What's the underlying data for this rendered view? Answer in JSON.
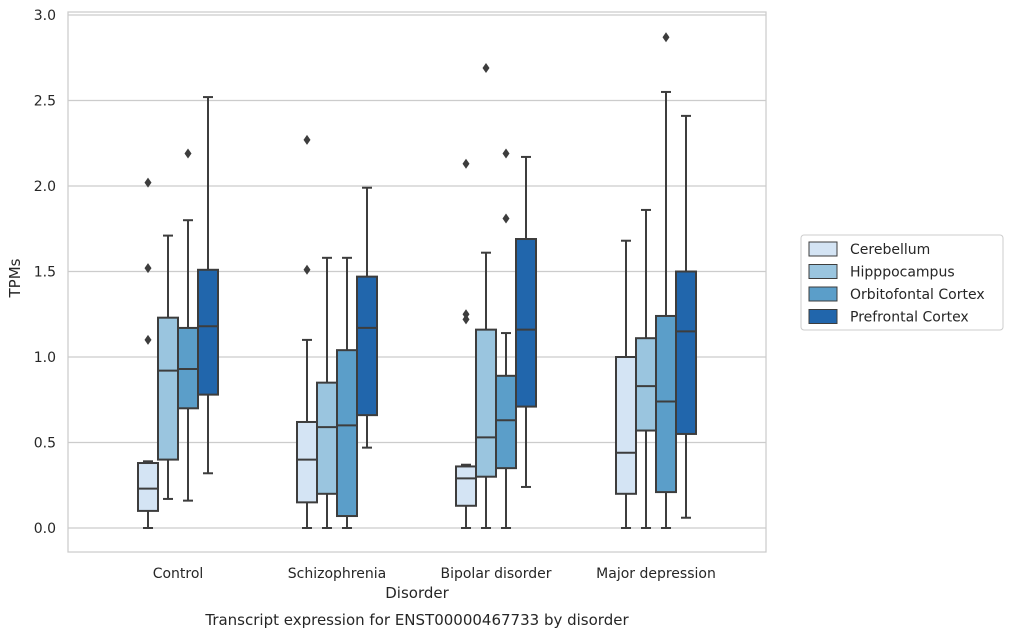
{
  "chart_data": {
    "type": "box",
    "title": "",
    "caption": "Transcript expression for ENST00000467733 by disorder",
    "xlabel": "Disorder",
    "ylabel": "TPMs",
    "ylim": [
      -0.14,
      3.02
    ],
    "yticks": [
      0.0,
      0.5,
      1.0,
      1.5,
      2.0,
      2.5,
      3.0
    ],
    "ytick_labels": [
      "0.0",
      "0.5",
      "1.0",
      "1.5",
      "2.0",
      "2.5",
      "3.0"
    ],
    "grid": "horizontal",
    "legend_position": "right",
    "categories": [
      "Control",
      "Schizophrenia",
      "Bipolar disorder",
      "Major depression"
    ],
    "series": [
      {
        "name": "Cerebellum",
        "color": "#d4e4f4",
        "boxes": [
          {
            "whislo": 0.0,
            "q1": 0.1,
            "med": 0.23,
            "q3": 0.38,
            "whishi": 0.39,
            "fliers": [
              2.02,
              1.52,
              1.1
            ]
          },
          {
            "whislo": 0.0,
            "q1": 0.15,
            "med": 0.4,
            "q3": 0.62,
            "whishi": 1.1,
            "fliers": [
              2.27,
              1.51
            ]
          },
          {
            "whislo": 0.0,
            "q1": 0.13,
            "med": 0.29,
            "q3": 0.36,
            "whishi": 0.37,
            "fliers": [
              2.13,
              1.25,
              1.22
            ]
          },
          {
            "whislo": 0.0,
            "q1": 0.2,
            "med": 0.44,
            "q3": 1.0,
            "whishi": 1.68,
            "fliers": []
          }
        ]
      },
      {
        "name": "Hipppocampus",
        "color": "#9ac5df",
        "boxes": [
          {
            "whislo": 0.17,
            "q1": 0.4,
            "med": 0.92,
            "q3": 1.23,
            "whishi": 1.71,
            "fliers": []
          },
          {
            "whislo": 0.0,
            "q1": 0.2,
            "med": 0.59,
            "q3": 0.85,
            "whishi": 1.58,
            "fliers": []
          },
          {
            "whislo": 0.0,
            "q1": 0.3,
            "med": 0.53,
            "q3": 1.16,
            "whishi": 1.61,
            "fliers": [
              2.69
            ]
          },
          {
            "whislo": 0.0,
            "q1": 0.57,
            "med": 0.83,
            "q3": 1.11,
            "whishi": 1.86,
            "fliers": []
          }
        ]
      },
      {
        "name": "Orbitofontal Cortex",
        "color": "#5b9ec9",
        "boxes": [
          {
            "whislo": 0.16,
            "q1": 0.7,
            "med": 0.93,
            "q3": 1.17,
            "whishi": 1.8,
            "fliers": [
              2.19
            ]
          },
          {
            "whislo": 0.0,
            "q1": 0.07,
            "med": 0.6,
            "q3": 1.04,
            "whishi": 1.58,
            "fliers": []
          },
          {
            "whislo": 0.0,
            "q1": 0.35,
            "med": 0.63,
            "q3": 0.89,
            "whishi": 1.14,
            "fliers": [
              2.19,
              1.81
            ]
          },
          {
            "whislo": 0.0,
            "q1": 0.21,
            "med": 0.74,
            "q3": 1.24,
            "whishi": 2.55,
            "fliers": [
              2.87
            ]
          }
        ]
      },
      {
        "name": "Prefrontal Cortex",
        "color": "#2166ac",
        "boxes": [
          {
            "whislo": 0.32,
            "q1": 0.78,
            "med": 1.18,
            "q3": 1.51,
            "whishi": 2.52,
            "fliers": []
          },
          {
            "whislo": 0.47,
            "q1": 0.66,
            "med": 1.17,
            "q3": 1.47,
            "whishi": 1.99,
            "fliers": []
          },
          {
            "whislo": 0.24,
            "q1": 0.71,
            "med": 1.16,
            "q3": 1.69,
            "whishi": 2.17,
            "fliers": []
          },
          {
            "whislo": 0.06,
            "q1": 0.55,
            "med": 1.15,
            "q3": 1.5,
            "whishi": 2.41,
            "fliers": []
          }
        ]
      }
    ]
  }
}
